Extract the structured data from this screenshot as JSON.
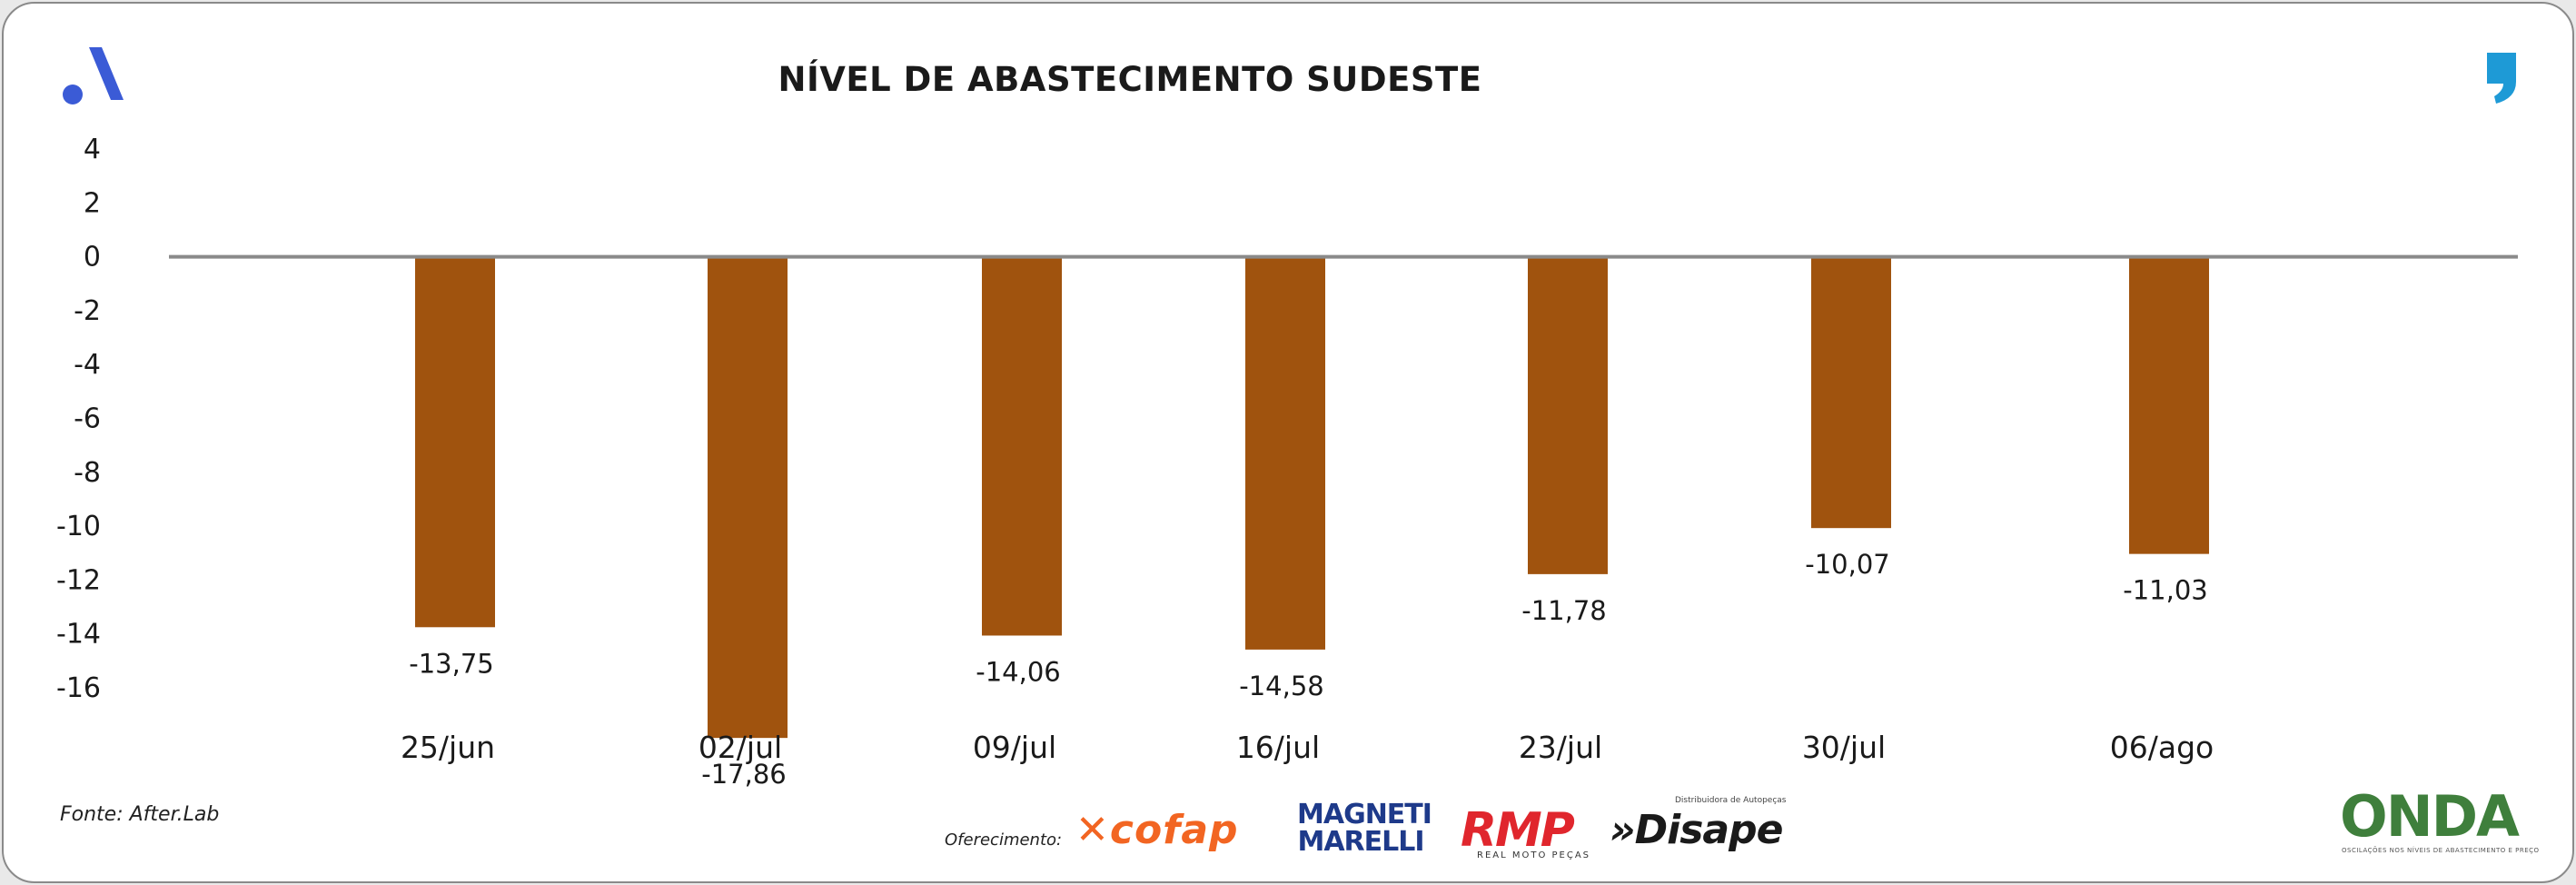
{
  "header": {
    "title": "NÍVEL DE ABASTECIMENTO SUDESTE"
  },
  "footer": {
    "source": "Fonte: After.Lab",
    "sponsor_label": "Oferecimento:",
    "sponsors": {
      "cofap": "cofap",
      "magneti_line1": "MAGNETI",
      "magneti_line2": "MARELLI",
      "rmp": "RMP",
      "rmp_sub": "REAL MOTO PEÇAS",
      "disape": "»Disape",
      "disape_sub": "Distribuidora de Autopeças"
    },
    "onda": "ONDA",
    "onda_sub": "OSCILAÇÕES NOS NÍVEIS DE ABASTECIMENTO E PREÇO"
  },
  "colors": {
    "bar": "#a0530e",
    "axis_zero": "#8a8a8a",
    "logo_blue": "#3b5bd6",
    "quote_blue": "#1e9ad6"
  },
  "chart_data": {
    "type": "bar",
    "title": "NÍVEL DE ABASTECIMENTO SUDESTE",
    "categories": [
      "25/jun",
      "02/jul",
      "09/jul",
      "16/jul",
      "23/jul",
      "30/jul",
      "06/ago"
    ],
    "values": [
      -13.75,
      -17.86,
      -14.06,
      -14.58,
      -11.78,
      -10.07,
      -11.03
    ],
    "value_labels": [
      "-13,75",
      "-17,86",
      "-14,06",
      "-14,58",
      "-11,78",
      "-10,07",
      "-11,03"
    ],
    "y_ticks": [
      4,
      2,
      0,
      -2,
      -4,
      -6,
      -8,
      -10,
      -12,
      -14,
      -16
    ],
    "ylim": [
      -16,
      4
    ],
    "grid": false,
    "legend": "none"
  }
}
